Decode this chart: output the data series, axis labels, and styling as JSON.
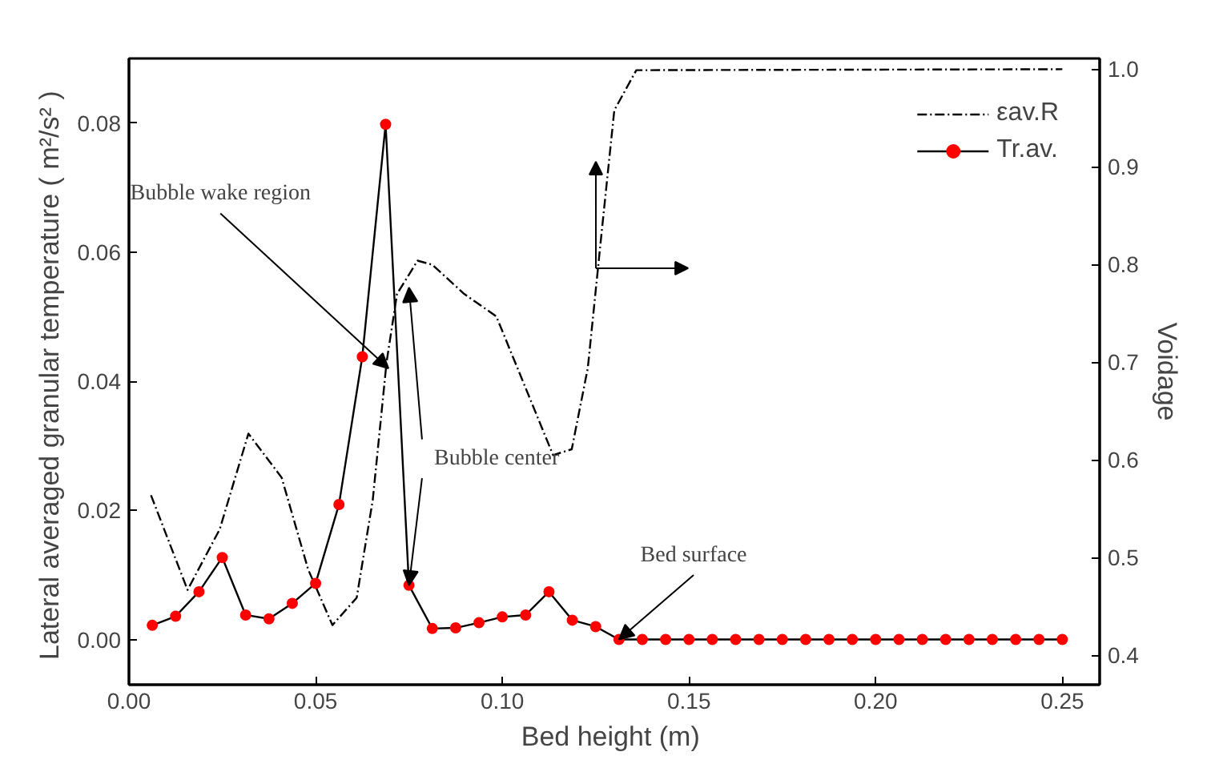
{
  "chart_data": {
    "type": "line",
    "xlabel": "Bed height  (m)",
    "ylabel": "Lateral averaged granular temperature  ( m²/s² )",
    "y2label": "Voidage",
    "xlim": [
      0,
      0.26
    ],
    "ylim": [
      -0.007,
      0.09
    ],
    "y2lim": [
      0.37,
      1.011
    ],
    "xticks": [
      {
        "value": 0,
        "label": "0.00"
      },
      {
        "value": 0.05,
        "label": "0.05"
      },
      {
        "value": 0.1,
        "label": "0.10"
      },
      {
        "value": 0.15,
        "label": "0.15"
      },
      {
        "value": 0.2,
        "label": "0.20"
      },
      {
        "value": 0.25,
        "label": "0.25"
      }
    ],
    "yticks": [
      {
        "value": 0,
        "label": "0.00"
      },
      {
        "value": 0.02,
        "label": "0.02"
      },
      {
        "value": 0.04,
        "label": "0.04"
      },
      {
        "value": 0.06,
        "label": "0.06"
      },
      {
        "value": 0.08,
        "label": "0.08"
      }
    ],
    "y2ticks": [
      0.4,
      0.5,
      0.6,
      0.7,
      0.8,
      0.9,
      {
        "value": 1.0,
        "label": "1.0"
      }
    ],
    "grid": false,
    "legend": "top right",
    "series": [
      {
        "name": "εav.R",
        "color": "#000000",
        "axis": "y2",
        "marker": "none",
        "line_style": "dashed",
        "x": [
          0.0059,
          0.0157,
          0.0243,
          0.032,
          0.0409,
          0.048,
          0.0545,
          0.061,
          0.0653,
          0.069,
          0.0718,
          0.0773,
          0.0812,
          0.0898,
          0.0984,
          0.1136,
          0.1186,
          0.1229,
          0.1265,
          0.13,
          0.1359,
          0.25
        ],
        "values": [
          0.564,
          0.467,
          0.529,
          0.627,
          0.582,
          0.488,
          0.431,
          0.459,
          0.559,
          0.7,
          0.77,
          0.804,
          0.8,
          0.77,
          0.747,
          0.605,
          0.611,
          0.694,
          0.829,
          0.958,
          0.999,
          1.0
        ]
      },
      {
        "name": "Tr.av.",
        "color": "#ff0000",
        "axis": "y",
        "marker": "circle",
        "line_style": "solid",
        "x": [
          0.00625,
          0.0125,
          0.01875,
          0.025,
          0.03125,
          0.0375,
          0.04375,
          0.05,
          0.05625,
          0.0625,
          0.06875,
          0.075,
          0.08125,
          0.0875,
          0.09375,
          0.1,
          0.10625,
          0.1125,
          0.11875,
          0.125,
          0.13125,
          0.1375,
          0.14375,
          0.15,
          0.15625,
          0.1625,
          0.16875,
          0.175,
          0.18125,
          0.1875,
          0.19375,
          0.2,
          0.20625,
          0.2125,
          0.21875,
          0.225,
          0.23125,
          0.2375,
          0.24375,
          0.25
        ],
        "values": [
          0.0022,
          0.0036,
          0.0074,
          0.0127,
          0.0038,
          0.0032,
          0.0056,
          0.0087,
          0.0209,
          0.0438,
          0.0798,
          0.0084,
          0.0017,
          0.0018,
          0.0026,
          0.0035,
          0.0038,
          0.0074,
          0.003,
          0.002,
          0.0,
          0.0,
          0.0,
          0.0,
          0.0,
          0.0,
          0.0,
          0.0,
          0.0,
          0.0,
          0.0,
          0.0,
          0.0,
          0.0,
          0.0,
          0.0,
          0.0,
          0.0,
          0.0,
          0.0
        ]
      }
    ],
    "annotations": [
      {
        "text": "Bubble wake region",
        "x": 0.0695,
        "y": 0.042
      },
      {
        "text": "Bubble center",
        "x": 0.075,
        "y": 0.0084
      },
      {
        "text": "Bed surface",
        "x": 0.13125,
        "y": 0.0
      }
    ]
  }
}
